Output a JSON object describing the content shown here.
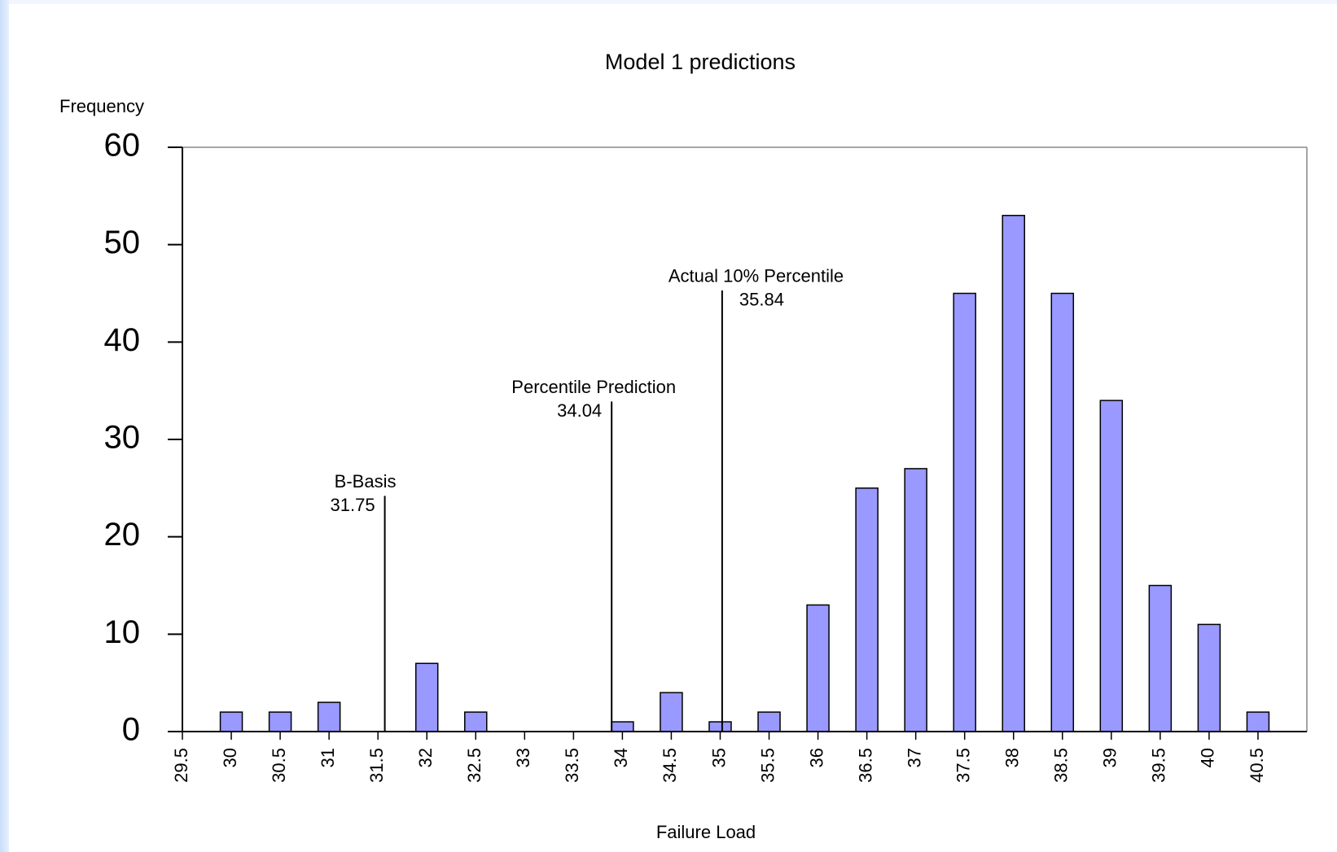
{
  "chart_data": {
    "type": "bar",
    "title": "Model  1  predictions",
    "y_label": "Frequency",
    "x_label": "Failure Load",
    "x": [
      30,
      30.5,
      31,
      31.5,
      32,
      32.5,
      33,
      33.5,
      34,
      34.5,
      35,
      35.5,
      36,
      36.5,
      37,
      37.5,
      38,
      38.5,
      39,
      39.5,
      40,
      40.5
    ],
    "values": [
      2,
      2,
      3,
      0,
      7,
      2,
      0,
      0,
      1,
      4,
      1,
      2,
      13,
      25,
      27,
      45,
      53,
      45,
      34,
      15,
      11,
      2
    ],
    "color": "#9999ff",
    "xlim": [
      29.5,
      41
    ],
    "xticks": [
      29.5,
      30,
      30.5,
      31,
      31.5,
      32,
      32.5,
      33,
      33.5,
      34,
      34.5,
      35,
      35.5,
      36,
      36.5,
      37,
      37.5,
      38,
      38.5,
      39,
      39.5,
      40,
      40.5
    ],
    "ylim": [
      0,
      60
    ],
    "yticks": [
      0,
      10,
      20,
      30,
      40,
      50,
      60
    ],
    "annotations": [
      {
        "text": "B-Basis",
        "value_label": "31.75",
        "x": 31.57,
        "top": 24.2
      },
      {
        "text": "Percentile Prediction",
        "value_label": "34.04",
        "x": 33.89,
        "top": 33.9
      },
      {
        "text": "Actual 10% Percentile",
        "value_label": "35.84",
        "x": 35.02,
        "top": 45.3
      }
    ]
  }
}
